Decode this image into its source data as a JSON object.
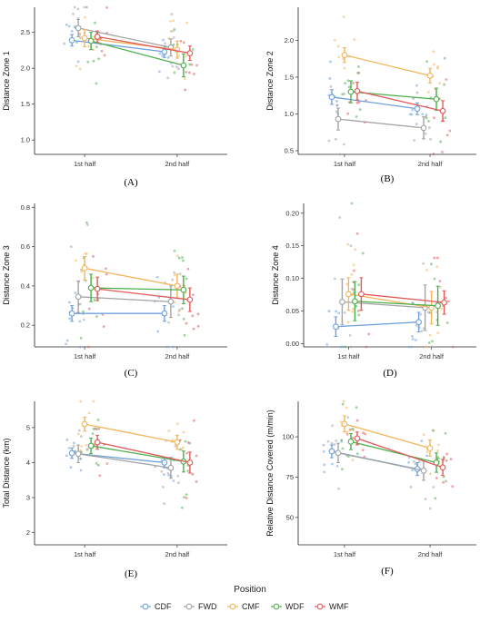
{
  "colors": {
    "CDF": "#6fa1dd",
    "FWD": "#a3a3a3",
    "CMF": "#f3b55c",
    "WDF": "#4cae4c",
    "WMF": "#e05a5a"
  },
  "legend": {
    "title": "Position",
    "items": [
      "CDF",
      "FWD",
      "CMF",
      "WDF",
      "WMF"
    ]
  },
  "chart_data": [
    {
      "type": "line",
      "panel_label": "(A)",
      "ylabel": "Distance Zone 1",
      "categories": [
        "1st half",
        "2nd half"
      ],
      "ylim": [
        0.8,
        2.85
      ],
      "yticks": [
        1.0,
        1.5,
        2.0,
        2.5
      ],
      "tick_labels": [
        "1.0",
        "1.5",
        "2.0",
        "2.5"
      ],
      "series": [
        {
          "name": "CDF",
          "values": [
            2.39,
            2.23
          ],
          "errors": [
            0.08,
            0.08
          ]
        },
        {
          "name": "FWD",
          "values": [
            2.56,
            2.29
          ],
          "errors": [
            0.12,
            0.12
          ]
        },
        {
          "name": "CMF",
          "values": [
            2.42,
            2.26
          ],
          "errors": [
            0.12,
            0.12
          ]
        },
        {
          "name": "WDF",
          "values": [
            2.38,
            2.04
          ],
          "errors": [
            0.12,
            0.16
          ]
        },
        {
          "name": "WMF",
          "values": [
            2.44,
            2.21
          ],
          "errors": [
            0.08,
            0.1
          ]
        }
      ]
    },
    {
      "type": "line",
      "panel_label": "(B)",
      "ylabel": "Distance Zone 2",
      "categories": [
        "1st half",
        "2nd half"
      ],
      "ylim": [
        0.45,
        2.45
      ],
      "yticks": [
        0.5,
        1.0,
        1.5,
        2.0
      ],
      "tick_labels": [
        "0.5",
        "1.0",
        "1.5",
        "2.0"
      ],
      "series": [
        {
          "name": "CDF",
          "values": [
            1.23,
            1.07
          ],
          "errors": [
            0.1,
            0.08
          ]
        },
        {
          "name": "FWD",
          "values": [
            0.93,
            0.81
          ],
          "errors": [
            0.15,
            0.15
          ]
        },
        {
          "name": "CMF",
          "values": [
            1.8,
            1.52
          ],
          "errors": [
            0.1,
            0.1
          ]
        },
        {
          "name": "WDF",
          "values": [
            1.3,
            1.2
          ],
          "errors": [
            0.15,
            0.15
          ]
        },
        {
          "name": "WMF",
          "values": [
            1.31,
            1.04
          ],
          "errors": [
            0.12,
            0.14
          ]
        }
      ]
    },
    {
      "type": "line",
      "panel_label": "(C)",
      "ylabel": "Distance Zone 3",
      "categories": [
        "1st half",
        "2nd half"
      ],
      "ylim": [
        0.09,
        0.82
      ],
      "yticks": [
        0.2,
        0.4,
        0.6,
        0.8
      ],
      "tick_labels": [
        "0.2",
        "0.4",
        "0.6",
        "0.8"
      ],
      "series": [
        {
          "name": "CDF",
          "values": [
            0.26,
            0.26
          ],
          "errors": [
            0.04,
            0.04
          ]
        },
        {
          "name": "FWD",
          "values": [
            0.345,
            0.32
          ],
          "errors": [
            0.08,
            0.08
          ]
        },
        {
          "name": "CMF",
          "values": [
            0.49,
            0.4
          ],
          "errors": [
            0.06,
            0.06
          ]
        },
        {
          "name": "WDF",
          "values": [
            0.39,
            0.38
          ],
          "errors": [
            0.07,
            0.07
          ]
        },
        {
          "name": "WMF",
          "values": [
            0.385,
            0.33
          ],
          "errors": [
            0.06,
            0.06
          ]
        }
      ]
    },
    {
      "type": "line",
      "panel_label": "(D)",
      "ylabel": "Distance Zone 4",
      "categories": [
        "1st half",
        "2nd half"
      ],
      "ylim": [
        -0.005,
        0.215
      ],
      "yticks": [
        0.0,
        0.05,
        0.1,
        0.15,
        0.2
      ],
      "tick_labels": [
        "0.00",
        "0.05",
        "0.10",
        "0.15",
        "0.20"
      ],
      "series": [
        {
          "name": "CDF",
          "values": [
            0.026,
            0.033
          ],
          "errors": [
            0.015,
            0.015
          ]
        },
        {
          "name": "FWD",
          "values": [
            0.064,
            0.055
          ],
          "errors": [
            0.035,
            0.035
          ]
        },
        {
          "name": "CMF",
          "values": [
            0.076,
            0.055
          ],
          "errors": [
            0.025,
            0.025
          ]
        },
        {
          "name": "WDF",
          "values": [
            0.065,
            0.058
          ],
          "errors": [
            0.03,
            0.03
          ]
        },
        {
          "name": "WMF",
          "values": [
            0.076,
            0.063
          ],
          "errors": [
            0.025,
            0.018
          ]
        }
      ]
    },
    {
      "type": "line",
      "panel_label": "(E)",
      "ylabel": "Total Distance (km)",
      "categories": [
        "1st half",
        "2nd half"
      ],
      "ylim": [
        1.65,
        5.75
      ],
      "yticks": [
        2,
        3,
        4,
        5
      ],
      "tick_labels": [
        "2",
        "3",
        "4",
        "5"
      ],
      "series": [
        {
          "name": "CDF",
          "values": [
            4.27,
            4.0
          ],
          "errors": [
            0.15,
            0.15
          ]
        },
        {
          "name": "FWD",
          "values": [
            4.25,
            3.85
          ],
          "errors": [
            0.25,
            0.3
          ]
        },
        {
          "name": "CMF",
          "values": [
            5.1,
            4.58
          ],
          "errors": [
            0.2,
            0.2
          ]
        },
        {
          "name": "WDF",
          "values": [
            4.48,
            4.03
          ],
          "errors": [
            0.22,
            0.3
          ]
        },
        {
          "name": "WMF",
          "values": [
            4.58,
            4.0
          ],
          "errors": [
            0.2,
            0.3
          ]
        }
      ]
    },
    {
      "type": "line",
      "panel_label": "(F)",
      "ylabel": "Relative Distance Covered (m/min)",
      "categories": [
        "1st half",
        "2nd half"
      ],
      "ylim": [
        33,
        122
      ],
      "yticks": [
        50,
        75,
        100
      ],
      "tick_labels": [
        "50",
        "75",
        "100"
      ],
      "series": [
        {
          "name": "CDF",
          "values": [
            91,
            80
          ],
          "errors": [
            4,
            4
          ]
        },
        {
          "name": "FWD",
          "values": [
            90,
            79
          ],
          "errors": [
            6,
            6
          ]
        },
        {
          "name": "CMF",
          "values": [
            108,
            93
          ],
          "errors": [
            5,
            5
          ]
        },
        {
          "name": "WDF",
          "values": [
            97,
            84
          ],
          "errors": [
            5,
            6
          ]
        },
        {
          "name": "WMF",
          "values": [
            99,
            81
          ],
          "errors": [
            4,
            5
          ]
        }
      ]
    }
  ]
}
